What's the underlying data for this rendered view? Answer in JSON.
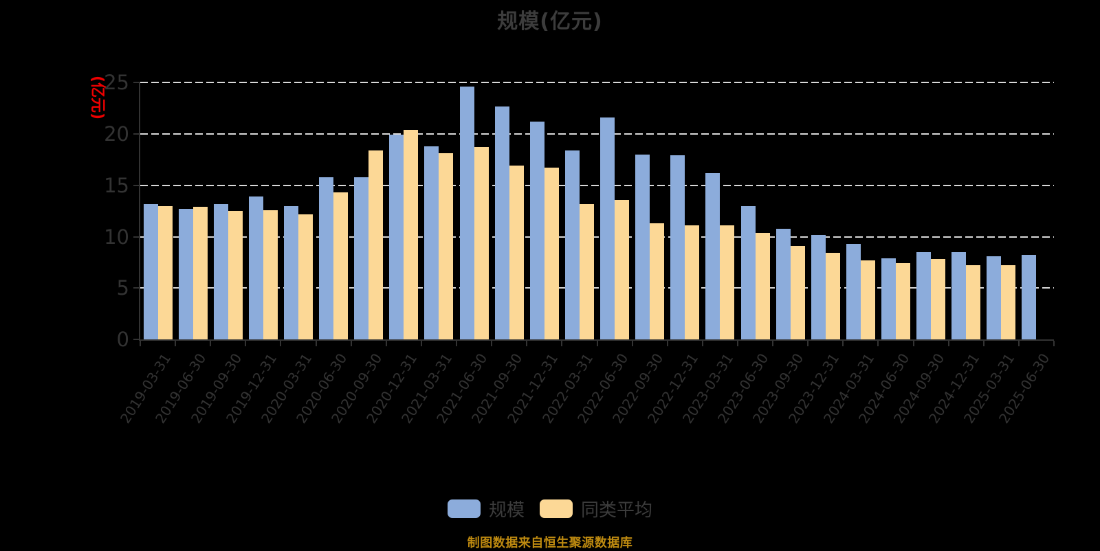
{
  "title": "规模(亿元)",
  "footer": "制图数据来自恒生聚源数据库",
  "colors": {
    "background": "#000000",
    "bar_scale": "#8CACDB",
    "bar_peer": "#FCD896",
    "axis": "#333333",
    "tick_label": "#333333",
    "title_text": "#3c3c3c",
    "y_name_red": "#ED0000",
    "footer_gold": "#BE8A10",
    "gridline": "#D9D9D9"
  },
  "y_axis": {
    "name": "(亿元)",
    "ticks": [
      0,
      5,
      10,
      15,
      20,
      25
    ]
  },
  "legend": {
    "items": [
      {
        "label": "规模",
        "color": "#8CACDB"
      },
      {
        "label": "同类平均",
        "color": "#FCD896"
      }
    ]
  },
  "chart_data": {
    "type": "bar",
    "title": "规模(亿元)",
    "ylabel": "(亿元)",
    "ylim": [
      0,
      25
    ],
    "grid": "horizontal dashed",
    "legend_position": "bottom",
    "categories": [
      "2019-03-31",
      "2019-06-30",
      "2019-09-30",
      "2019-12-31",
      "2020-03-31",
      "2020-06-30",
      "2020-09-30",
      "2020-12-31",
      "2021-03-31",
      "2021-06-30",
      "2021-09-30",
      "2021-12-31",
      "2022-03-31",
      "2022-06-30",
      "2022-09-30",
      "2022-12-31",
      "2023-03-31",
      "2023-06-30",
      "2023-09-30",
      "2023-12-31",
      "2024-03-31",
      "2024-06-30",
      "2024-09-30",
      "2024-12-31",
      "2025-03-31",
      "2025-06-30"
    ],
    "series": [
      {
        "name": "规模",
        "color": "#8CACDB",
        "values": [
          13.2,
          12.7,
          13.2,
          13.9,
          13.0,
          15.8,
          15.8,
          19.9,
          18.8,
          24.6,
          22.7,
          21.2,
          18.4,
          21.6,
          18.0,
          17.9,
          16.2,
          13.0,
          10.8,
          10.2,
          9.3,
          7.9,
          8.5,
          8.5,
          8.1,
          8.2
        ]
      },
      {
        "name": "同类平均",
        "color": "#FCD896",
        "values": [
          13.0,
          12.9,
          12.5,
          12.6,
          12.2,
          14.3,
          18.4,
          20.4,
          18.1,
          18.7,
          16.9,
          16.7,
          13.2,
          13.6,
          11.3,
          11.1,
          11.1,
          10.4,
          9.1,
          8.4,
          7.7,
          7.4,
          7.8,
          7.2,
          7.2,
          null
        ]
      }
    ]
  }
}
